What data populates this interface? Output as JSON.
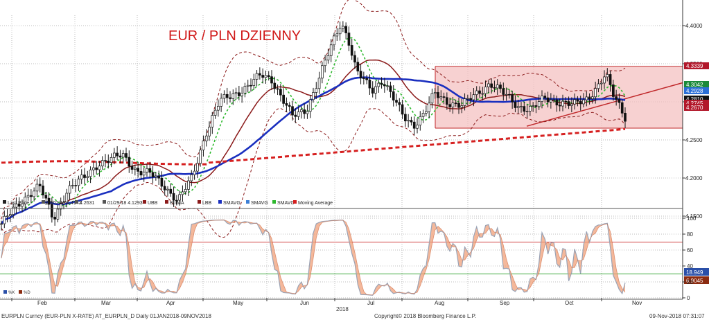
{
  "chart_data": [
    {
      "type": "candlestick",
      "title": "EUR / PLN DZIENNY",
      "ylim": [
        4.13,
        4.42
      ],
      "yticks": [
        4.15,
        4.2,
        4.25,
        4.3,
        4.35,
        4.4
      ],
      "yticks_labels": [
        "4.1500",
        "4.2000",
        "4.2500",
        "4.3000",
        "4.3500",
        "4.4000"
      ],
      "grid": true,
      "channel": {
        "low": 4.2655,
        "high": 4.3465
      },
      "price_tags": [
        {
          "label": "4.3339",
          "value": 4.3339,
          "color": "#b2182b"
        },
        {
          "label": "4.3042",
          "value": 4.3042,
          "color": "#1a8a3a"
        },
        {
          "label": "4.2928",
          "value": 4.2928,
          "color": "#2b6fd6"
        },
        {
          "label": "4.2810",
          "value": 4.281,
          "color": "#111111"
        },
        {
          "label": "4.2745",
          "value": 4.2745,
          "color": "#b2182b"
        },
        {
          "label": "4.2670",
          "value": 4.267,
          "color": "#b2182b"
        }
      ],
      "legend": [
        {
          "label": "Last Price",
          "color": "#222222"
        },
        {
          "label": "07/02/18 4.4142",
          "color": "#555555"
        },
        {
          "label": "4.2631",
          "color": "#555555"
        },
        {
          "label": "01/29/18 4.1293",
          "color": "#555555"
        },
        {
          "label": "UBB",
          "color": "#8b1a1a"
        },
        {
          "label": "BolMA",
          "color": "#8b1a1a"
        },
        {
          "label": "LBB",
          "color": "#8b1a1a"
        },
        {
          "label": "SMAVG",
          "color": "#1a2fbf"
        },
        {
          "label": "SMAVG",
          "color": "#3d7fd6"
        },
        {
          "label": "SMAVG",
          "color": "#2db82d"
        },
        {
          "label": "Moving Average",
          "color": "#d62020"
        }
      ]
    },
    {
      "type": "line",
      "ylim": [
        0,
        100
      ],
      "yticks": [
        0,
        20,
        40,
        60,
        80,
        100
      ],
      "levels": [
        30,
        70
      ],
      "series": [
        {
          "name": "%K",
          "last": "18.949",
          "color": "#2a4fa8"
        },
        {
          "name": "%D",
          "last": "6.9045",
          "color": "#8b2b10"
        }
      ]
    }
  ],
  "xaxis": {
    "months": [
      "Feb",
      "Mar",
      "Apr",
      "May",
      "Jun",
      "Jul",
      "Aug",
      "Sep",
      "Oct",
      "Nov"
    ],
    "year": "2018"
  },
  "footer": {
    "left": "EURPLN Curncy (EUR-PLN X-RATE) AT_EURPLN_D  Daily 01JAN2018-09NOV2018",
    "center": "Copyright© 2018 Bloomberg Finance L.P.",
    "right": "09-Nov-2018 07:31:07"
  },
  "colors": {
    "candle_up": "#ffffff",
    "candle_down": "#111111",
    "channel_fill": "#f4c2c2",
    "channel_line": "#c0282a",
    "ma200": "#d62020",
    "sma_blue": "#1a2fbf",
    "bol_ma": "#8b1a1a",
    "sma_green": "#2db82d",
    "stoch_k_line": "#9aa3b5",
    "stoch_fill": "#f0a07a"
  }
}
